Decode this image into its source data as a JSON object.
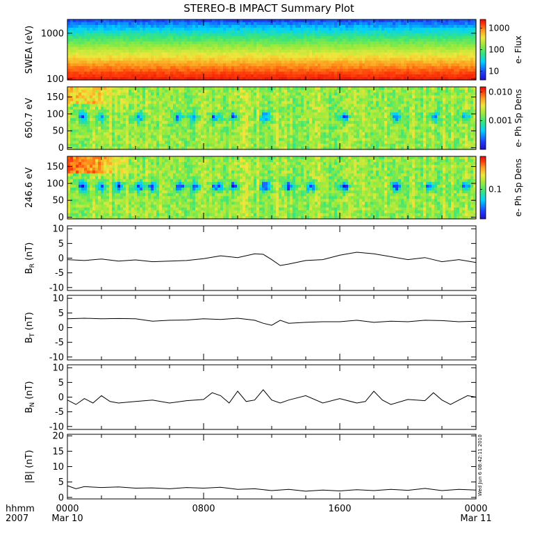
{
  "title": "STEREO-B IMPACT Summary Plot",
  "timestamp_note": "Wed Jun 6 08:42:11 2010",
  "time_axis": {
    "corner_top": "hhmm",
    "corner_bottom": "2007",
    "ticks": [
      {
        "hour": 0,
        "label": "0000",
        "date": "Mar 10"
      },
      {
        "hour": 8,
        "label": "0800",
        "date": ""
      },
      {
        "hour": 16,
        "label": "1600",
        "date": ""
      },
      {
        "hour": 24,
        "label": "0000",
        "date": "Mar 11"
      }
    ],
    "range_hours": [
      0,
      24
    ]
  },
  "colors": {
    "colormap": [
      "#1e10c8",
      "#1e3cff",
      "#00d2ff",
      "#3ce678",
      "#9bea3c",
      "#f0e63c",
      "#ff9b1e",
      "#ff3c0a",
      "#e60a0a"
    ],
    "line": "#000000"
  },
  "chart_data": [
    {
      "type": "heatmap",
      "ylabel": "SWEA (eV)",
      "ylim": [
        95,
        2000
      ],
      "yscale": "log",
      "yticks": [
        {
          "v": 100,
          "label": "100"
        },
        {
          "v": 1000,
          "label": "1000"
        }
      ],
      "colorbar": {
        "label": "e- Flux",
        "scale": "log",
        "range": [
          4,
          2500
        ],
        "ticks": [
          {
            "v": 10,
            "label": "10"
          },
          {
            "v": 100,
            "label": "100"
          },
          {
            "v": 1000,
            "label": "1000"
          }
        ]
      },
      "description_levels": "flux decreasing with energy: ~2000 near 100 eV to ~10 near 2000 eV"
    },
    {
      "type": "heatmap",
      "ylabel": "650.7 eV",
      "ylim": [
        -5,
        180
      ],
      "yticks": [
        {
          "v": 0,
          "label": "0"
        },
        {
          "v": 50,
          "label": "50"
        },
        {
          "v": 100,
          "label": "100"
        },
        {
          "v": 150,
          "label": "150"
        }
      ],
      "colorbar": {
        "label": "e- Ph Sp Dens",
        "scale": "log",
        "range": [
          0.0001,
          0.015
        ],
        "ticks": [
          {
            "v": 0.001,
            "label": "0.001"
          },
          {
            "v": 0.01,
            "label": "0.010"
          }
        ]
      },
      "pitch_angle_dropouts_hours": [
        0.9,
        2.0,
        4.2,
        6.5,
        7.4,
        8.7,
        9.8,
        11.6,
        16.3,
        19.3,
        21.5,
        23.4
      ]
    },
    {
      "type": "heatmap",
      "ylabel": "246.6 eV",
      "ylim": [
        -5,
        180
      ],
      "yticks": [
        {
          "v": 0,
          "label": "0"
        },
        {
          "v": 50,
          "label": "50"
        },
        {
          "v": 100,
          "label": "100"
        },
        {
          "v": 150,
          "label": "150"
        }
      ],
      "colorbar": {
        "label": "e- Ph Sp Dens",
        "scale": "log",
        "range": [
          0.02,
          0.6
        ],
        "ticks": [
          {
            "v": 0.1,
            "label": "0.1"
          }
        ]
      },
      "pitch_angle_dropouts_hours": [
        0.9,
        2.0,
        3.0,
        4.2,
        5.0,
        6.6,
        7.5,
        8.8,
        9.8,
        11.6,
        13.0,
        14.3,
        16.3,
        19.3,
        21.3,
        23.4
      ]
    },
    {
      "type": "line",
      "ylabel": "B_R (nT)",
      "ylim": [
        -11,
        11
      ],
      "yticks": [
        {
          "v": -10,
          "label": "-10"
        },
        {
          "v": -5,
          "label": "-5"
        },
        {
          "v": 0,
          "label": "0"
        },
        {
          "v": 5,
          "label": "5"
        },
        {
          "v": 10,
          "label": "10"
        }
      ],
      "x": [
        0,
        1,
        2,
        3,
        4,
        5,
        6,
        7,
        8,
        9,
        10,
        11,
        11.5,
        12,
        12.5,
        13,
        14,
        15,
        16,
        17,
        18,
        19,
        20,
        21,
        22,
        23,
        24
      ],
      "y": [
        -0.5,
        -0.8,
        -0.3,
        -1.0,
        -0.6,
        -1.2,
        -1.0,
        -0.8,
        -0.2,
        0.8,
        0.2,
        1.5,
        1.3,
        -0.5,
        -2.5,
        -2.0,
        -0.8,
        -0.5,
        1.0,
        2.0,
        1.5,
        0.5,
        -0.5,
        0.2,
        -1.2,
        -0.5,
        -1.5
      ]
    },
    {
      "type": "line",
      "ylabel": "B_T (nT)",
      "ylim": [
        -11,
        11
      ],
      "yticks": [
        {
          "v": -10,
          "label": "-10"
        },
        {
          "v": -5,
          "label": "-5"
        },
        {
          "v": 0,
          "label": "0"
        },
        {
          "v": 5,
          "label": "5"
        },
        {
          "v": 10,
          "label": "10"
        }
      ],
      "x": [
        0,
        1,
        2,
        3,
        4,
        5,
        6,
        7,
        8,
        9,
        10,
        11,
        11.5,
        12,
        12.5,
        13,
        14,
        15,
        16,
        17,
        18,
        19,
        20,
        21,
        22,
        23,
        24
      ],
      "y": [
        3.0,
        3.2,
        3.0,
        3.1,
        3.0,
        2.2,
        2.5,
        2.6,
        3.0,
        2.8,
        3.2,
        2.5,
        1.5,
        0.8,
        2.5,
        1.5,
        1.8,
        2.0,
        2.0,
        2.5,
        1.8,
        2.2,
        2.0,
        2.5,
        2.4,
        2.0,
        2.2
      ]
    },
    {
      "type": "line",
      "ylabel": "B_N (nT)",
      "ylim": [
        -11,
        11
      ],
      "yticks": [
        {
          "v": -10,
          "label": "-10"
        },
        {
          "v": -5,
          "label": "-5"
        },
        {
          "v": 0,
          "label": "0"
        },
        {
          "v": 5,
          "label": "5"
        },
        {
          "v": 10,
          "label": "10"
        }
      ],
      "x": [
        0,
        0.5,
        1,
        1.5,
        2,
        2.5,
        3,
        4,
        5,
        6,
        7,
        8,
        8.5,
        9,
        9.5,
        10,
        10.5,
        11,
        11.5,
        12,
        12.5,
        13,
        14,
        15,
        16,
        17,
        17.5,
        18,
        18.5,
        19,
        20,
        21,
        21.5,
        22,
        22.5,
        23,
        23.5,
        24
      ],
      "y": [
        -1.0,
        -2.5,
        -0.5,
        -2.0,
        0.5,
        -1.5,
        -2.0,
        -1.5,
        -1.0,
        -2.0,
        -1.2,
        -0.8,
        1.5,
        0.5,
        -2.0,
        2.0,
        -1.5,
        -1.0,
        2.5,
        -1.0,
        -2.0,
        -1.0,
        0.5,
        -2.0,
        -0.5,
        -2.0,
        -1.5,
        2.0,
        -1.0,
        -2.5,
        -0.8,
        -1.2,
        1.5,
        -1.0,
        -2.5,
        -1.0,
        0.5,
        0.0
      ]
    },
    {
      "type": "line",
      "ylabel": "|B| (nT)",
      "ylim": [
        -0.5,
        20.5
      ],
      "yticks": [
        {
          "v": 0,
          "label": "0"
        },
        {
          "v": 5,
          "label": "5"
        },
        {
          "v": 10,
          "label": "10"
        },
        {
          "v": 15,
          "label": "15"
        },
        {
          "v": 20,
          "label": "20"
        }
      ],
      "x": [
        0,
        0.5,
        1,
        2,
        3,
        4,
        5,
        6,
        7,
        8,
        9,
        10,
        11,
        12,
        13,
        14,
        15,
        16,
        17,
        18,
        19,
        20,
        21,
        22,
        23,
        24
      ],
      "y": [
        3.8,
        2.8,
        3.5,
        3.2,
        3.4,
        3.0,
        3.1,
        2.8,
        3.2,
        3.0,
        3.3,
        2.6,
        2.8,
        2.2,
        2.6,
        2.0,
        2.4,
        2.1,
        2.5,
        2.2,
        2.6,
        2.3,
        2.9,
        2.2,
        2.6,
        2.4
      ]
    }
  ]
}
